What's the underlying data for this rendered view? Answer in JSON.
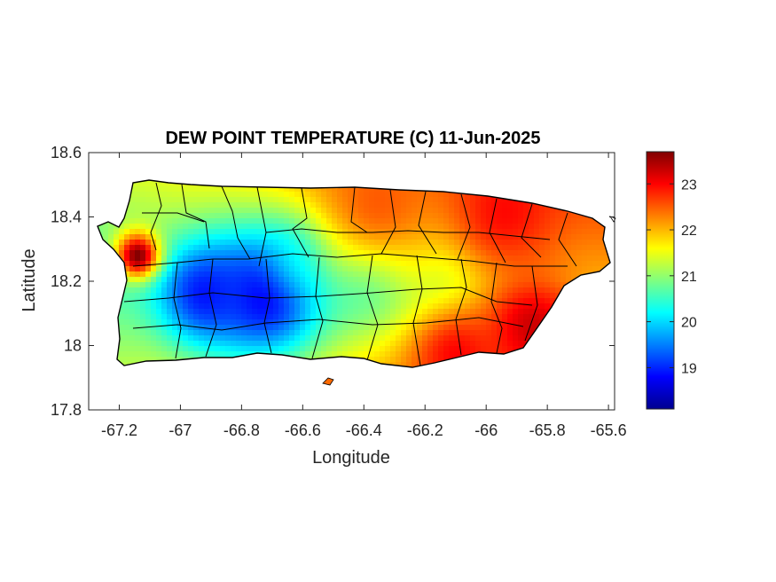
{
  "chart_data": {
    "type": "heatmap",
    "title": "DEW POINT TEMPERATURE (C) 11-Jun-2025",
    "xlabel": "Longitude",
    "ylabel": "Latitude",
    "xlim": [
      -67.3,
      -65.58
    ],
    "ylim": [
      17.8,
      18.6
    ],
    "xticks": [
      -67.2,
      -67,
      -66.8,
      -66.6,
      -66.4,
      -66.2,
      -66,
      -65.8,
      -65.6
    ],
    "xtick_labels": [
      "-67.2",
      "-67",
      "-66.8",
      "-66.6",
      "-66.4",
      "-66.2",
      "-66",
      "-65.8",
      "-65.6"
    ],
    "yticks": [
      17.8,
      18,
      18.2,
      18.4,
      18.6
    ],
    "ytick_labels": [
      "17.8",
      "18",
      "18.2",
      "18.4",
      "18.6"
    ],
    "colormap": "jet",
    "colorbar": {
      "range": [
        18.1,
        23.7
      ],
      "ticks": [
        19,
        20,
        21,
        22,
        23
      ],
      "tick_labels": [
        "19",
        "20",
        "21",
        "22",
        "23"
      ],
      "placement": "right"
    },
    "region": "Puerto Rico (municipality boundaries overlaid)",
    "field_hotspots": [
      {
        "lon": -66.72,
        "lat": 18.16,
        "value": 18.6,
        "spread": 0.2
      },
      {
        "lon": -66.92,
        "lat": 18.16,
        "value": 18.9,
        "spread": 0.15
      },
      {
        "lon": -66.6,
        "lat": 18.28,
        "value": 19.6,
        "spread": 0.12
      },
      {
        "lon": -66.38,
        "lat": 18.24,
        "value": 20.0,
        "spread": 0.18
      },
      {
        "lon": -66.15,
        "lat": 18.22,
        "value": 20.8,
        "spread": 0.15
      },
      {
        "lon": -67.14,
        "lat": 18.28,
        "value": 23.7,
        "spread": 0.07
      },
      {
        "lon": -65.85,
        "lat": 18.06,
        "value": 23.3,
        "spread": 0.15
      },
      {
        "lon": -65.95,
        "lat": 18.42,
        "value": 23.0,
        "spread": 0.2
      },
      {
        "lon": -66.1,
        "lat": 17.97,
        "value": 23.0,
        "spread": 0.15
      },
      {
        "lon": -66.35,
        "lat": 18.45,
        "value": 22.5,
        "spread": 0.25
      }
    ]
  }
}
